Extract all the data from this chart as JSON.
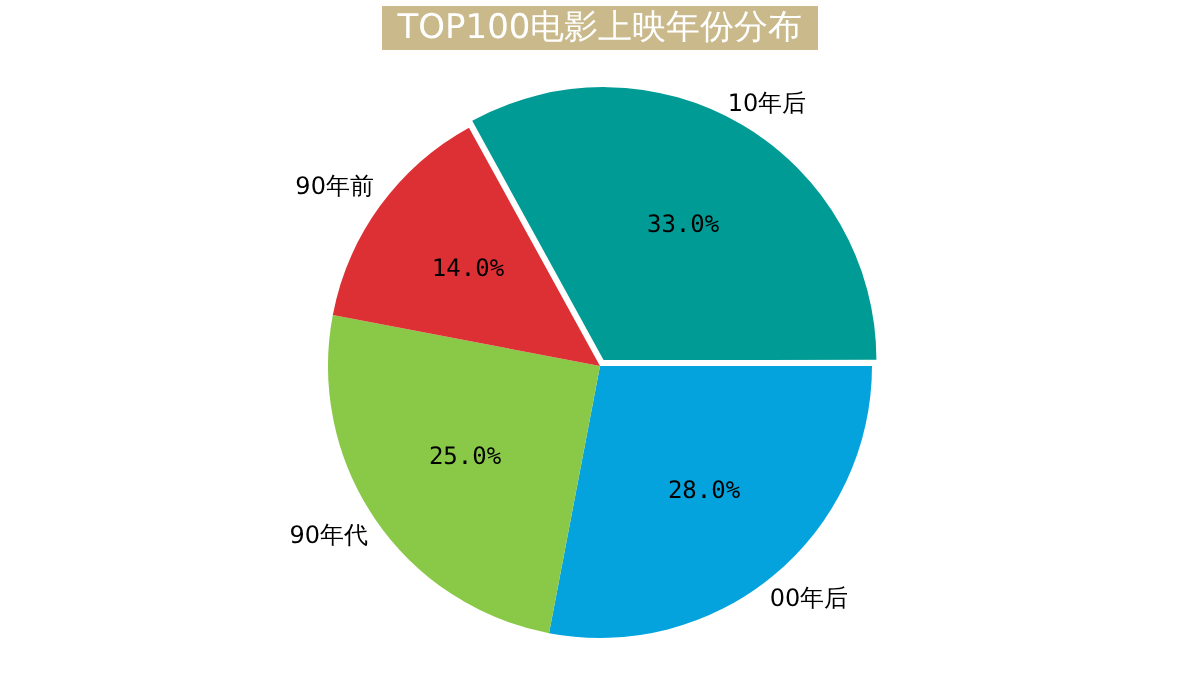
{
  "chart_data": {
    "type": "pie",
    "title": "TOP100电影上映年份分布",
    "categories": [
      "10年后",
      "00年后",
      "90年代",
      "90年前"
    ],
    "values": [
      33,
      28,
      25,
      14
    ],
    "colors": [
      "#009b95",
      "#05a3dd",
      "#89c947",
      "#dc3035"
    ],
    "value_labels": [
      "33.0%",
      "28.0%",
      "25.0%",
      "14.0%"
    ],
    "legend": false
  }
}
